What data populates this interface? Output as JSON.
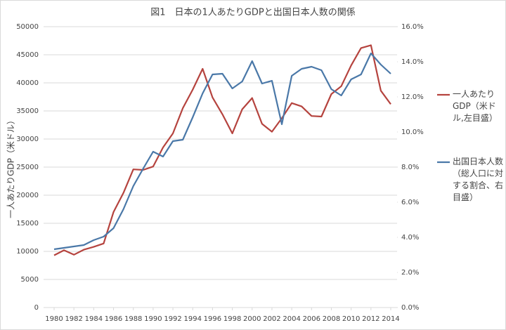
{
  "chart_data": {
    "type": "line",
    "title": "図1　日本の1人あたりGDPと出国日本人数の関係",
    "y_label": "一人あたりGDP（米ドル）",
    "x": [
      1980,
      1981,
      1982,
      1983,
      1984,
      1985,
      1986,
      1987,
      1988,
      1989,
      1990,
      1991,
      1992,
      1993,
      1994,
      1995,
      1996,
      1997,
      1998,
      1999,
      2000,
      2001,
      2002,
      2003,
      2004,
      2005,
      2006,
      2007,
      2008,
      2009,
      2010,
      2011,
      2012,
      2013,
      2014
    ],
    "xlim": [
      1980,
      2014
    ],
    "xticks": [
      1980,
      1982,
      1984,
      1986,
      1988,
      1990,
      1992,
      1994,
      1996,
      1998,
      2000,
      2002,
      2004,
      2006,
      2008,
      2010,
      2012,
      2014
    ],
    "ylim": [
      0,
      50000
    ],
    "yticks": [
      0,
      5000,
      10000,
      15000,
      20000,
      25000,
      30000,
      35000,
      40000,
      45000,
      50000
    ],
    "y2lim": [
      0,
      16
    ],
    "y2ticks": [
      {
        "value": 0,
        "label": "0.0%"
      },
      {
        "value": 2,
        "label": "2.0%"
      },
      {
        "value": 4,
        "label": "4.0%"
      },
      {
        "value": 6,
        "label": "6.0%"
      },
      {
        "value": 8,
        "label": "8.0%"
      },
      {
        "value": 10,
        "label": "10.0%"
      },
      {
        "value": 12,
        "label": "12.0%"
      },
      {
        "value": 14,
        "label": "14.0%"
      },
      {
        "value": 16,
        "label": "16.0%"
      }
    ],
    "grid": true,
    "legend": "right",
    "series": [
      {
        "name": "一人あたりGDP（米ドル,左目盛）",
        "color": "#b5433e",
        "axis": "y",
        "values": [
          9300,
          10200,
          9400,
          10300,
          10800,
          11400,
          17000,
          20400,
          24600,
          24500,
          25100,
          28500,
          31000,
          35500,
          38800,
          42500,
          37400,
          34400,
          31000,
          35300,
          37300,
          32700,
          31300,
          33700,
          36400,
          35800,
          34100,
          34000,
          38000,
          39400,
          43100,
          46200,
          46700,
          38600,
          36200
        ]
      },
      {
        "name": "出国日本人数（総人口に対する割合、右目盛）",
        "color": "#4a78a8",
        "axis": "y2",
        "values": [
          3.32,
          3.4,
          3.48,
          3.56,
          3.84,
          4.04,
          4.52,
          5.6,
          6.92,
          7.92,
          8.88,
          8.6,
          9.48,
          9.56,
          10.84,
          12.2,
          13.28,
          13.32,
          12.48,
          12.88,
          14.04,
          12.76,
          12.92,
          10.44,
          13.2,
          13.6,
          13.72,
          13.52,
          12.44,
          12.08,
          13.0,
          13.28,
          14.48,
          13.84,
          13.32
        ]
      }
    ]
  }
}
